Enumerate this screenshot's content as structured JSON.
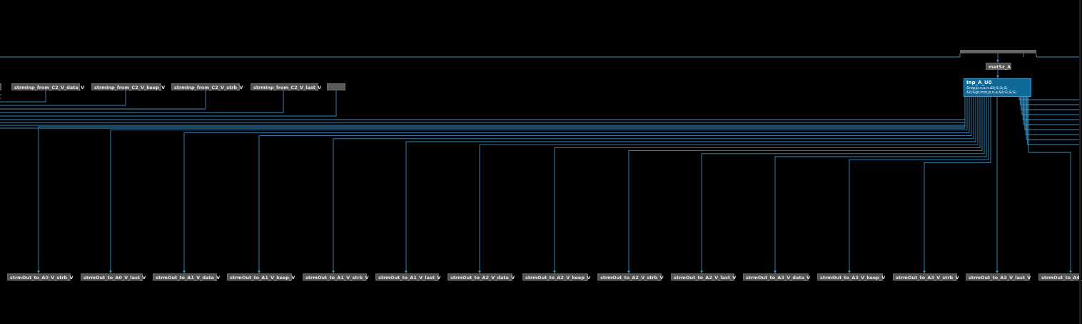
{
  "colors": {
    "wire": "#3b8fc2",
    "node_fill": "#555555",
    "node_text": "#e8e8e8",
    "module_fill": "#0f6a99"
  },
  "top_inputs": [
    "",
    "strmInp_from_C2_V_data_V",
    "strmInp_from_C2_V_keep_V",
    "strmInp_from_C2_V_strb_V",
    "strmInp_from_C2_V_last_V",
    ""
  ],
  "matsz_label": "matSz_A",
  "module": {
    "title": "Inp_A_U0",
    "lines": [
      "&reg;p,n,a,n,&b;&;&;&;",
      "&lt;&gt;mm;p,n,a,&b;&;&;&;"
    ]
  },
  "outputs": [
    "strmOut_to_A0_V_strb_V",
    "strmOut_to_A0_V_last_V",
    "strmOut_to_A1_V_data_V",
    "strmOut_to_A1_V_keep_V",
    "strmOut_to_A1_V_strb_V",
    "strmOut_to_A1_V_last_V",
    "strmOut_to_A2_V_data_V",
    "strmOut_to_A2_V_keep_V",
    "strmOut_to_A2_V_strb_V",
    "strmOut_to_A2_V_last_V",
    "strmOut_to_A3_V_data_V",
    "strmOut_to_A3_V_keep_V",
    "strmOut_to_A3_V_strb_V",
    "strmOut_to_A3_V_last_V",
    "strmOut_to_A4_"
  ]
}
